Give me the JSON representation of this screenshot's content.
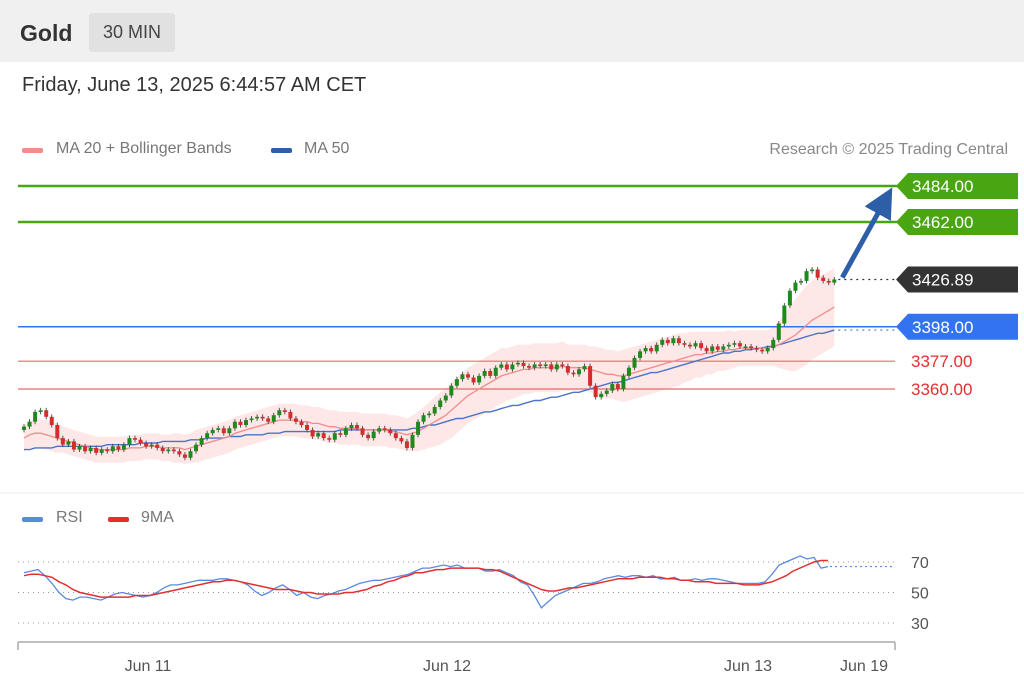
{
  "header": {
    "instrument": "Gold",
    "timeframe": "30 MIN"
  },
  "timestamp": "Friday, June 13, 2025 6:44:57 AM CET",
  "legend": {
    "ma20_label": "MA 20 + Bollinger Bands",
    "ma50_label": "MA 50"
  },
  "credit": "Research © 2025 Trading Central",
  "rsi_legend": {
    "rsi_label": "RSI",
    "ma_label": "9MA"
  },
  "colors": {
    "resistance": "#49a612",
    "support_line": "#e76b6b",
    "pivot": "#3373f2",
    "ma20": "#f08c8c",
    "ma50": "#4a74c8",
    "band": "#fde3e3",
    "bull": "#1e8a1e",
    "bear": "#d32d2d",
    "arrow": "#2d5ea8",
    "price_tag": "#333333",
    "rsi": "#5a8ae0",
    "rsi_ma": "#e23030"
  },
  "chart_data": [
    {
      "type": "candlestick",
      "title": "Gold 30 MIN",
      "ylim": [
        3300,
        3500
      ],
      "x_ticks": [
        "Jun 11",
        "Jun 12",
        "Jun 13",
        "Jun 19"
      ],
      "current_price": 3426.89,
      "levels": {
        "resistance": [
          3484.0,
          3462.0
        ],
        "pivot": 3398.0,
        "support": [
          3377.0,
          3360.0
        ]
      },
      "level_labels": [
        "3484.00",
        "3462.00",
        "3426.89",
        "3398.00",
        "3377.00",
        "3360.00"
      ],
      "target": 3480,
      "close": [
        3337,
        3340,
        3346,
        3347,
        3343,
        3338,
        3330,
        3326,
        3328,
        3323,
        3325,
        3322,
        3324,
        3321,
        3323,
        3322,
        3325,
        3323,
        3326,
        3330,
        3329,
        3327,
        3325,
        3326,
        3324,
        3322,
        3323,
        3322,
        3320,
        3318,
        3322,
        3326,
        3330,
        3333,
        3335,
        3336,
        3333,
        3336,
        3340,
        3338,
        3341,
        3342,
        3343,
        3342,
        3340,
        3344,
        3347,
        3346,
        3342,
        3340,
        3338,
        3335,
        3331,
        3333,
        3330,
        3329,
        3333,
        3332,
        3336,
        3338,
        3336,
        3332,
        3330,
        3334,
        3336,
        3335,
        3333,
        3330,
        3328,
        3324,
        3332,
        3340,
        3344,
        3345,
        3349,
        3353,
        3356,
        3362,
        3366,
        3369,
        3367,
        3364,
        3368,
        3371,
        3368,
        3373,
        3375,
        3372,
        3375,
        3376,
        3374,
        3373,
        3375,
        3374,
        3375,
        3372,
        3375,
        3374,
        3370,
        3369,
        3372,
        3374,
        3362,
        3355,
        3357,
        3359,
        3363,
        3360,
        3368,
        3373,
        3379,
        3383,
        3385,
        3383,
        3387,
        3390,
        3388,
        3391,
        3388,
        3387,
        3386,
        3388,
        3385,
        3383,
        3386,
        3384,
        3386,
        3387,
        3388,
        3386,
        3386,
        3385,
        3384,
        3383,
        3385,
        3390,
        3400,
        3411,
        3420,
        3425,
        3426,
        3432,
        3433,
        3428,
        3426,
        3425,
        3426.89
      ],
      "ma20": [
        3330,
        3332,
        3333,
        3333,
        3332,
        3331,
        3330,
        3329,
        3328,
        3327,
        3326,
        3325,
        3324,
        3323,
        3323,
        3323,
        3323,
        3323,
        3323,
        3324,
        3324,
        3324,
        3325,
        3325,
        3325,
        3324,
        3324,
        3324,
        3324,
        3323,
        3324,
        3325,
        3326,
        3327,
        3328,
        3329,
        3330,
        3331,
        3333,
        3334,
        3335,
        3336,
        3337,
        3338,
        3339,
        3340,
        3341,
        3341,
        3341,
        3341,
        3340,
        3340,
        3339,
        3339,
        3338,
        3337,
        3337,
        3336,
        3336,
        3336,
        3336,
        3335,
        3335,
        3335,
        3335,
        3335,
        3334,
        3334,
        3333,
        3332,
        3333,
        3334,
        3336,
        3338,
        3340,
        3342,
        3344,
        3347,
        3350,
        3353,
        3356,
        3358,
        3360,
        3362,
        3364,
        3366,
        3368,
        3369,
        3370,
        3371,
        3372,
        3372,
        3373,
        3373,
        3373,
        3373,
        3373,
        3374,
        3373,
        3373,
        3373,
        3373,
        3372,
        3371,
        3370,
        3369,
        3369,
        3368,
        3368,
        3369,
        3370,
        3371,
        3372,
        3373,
        3374,
        3375,
        3376,
        3377,
        3378,
        3379,
        3380,
        3381,
        3381,
        3382,
        3382,
        3383,
        3383,
        3384,
        3384,
        3385,
        3385,
        3385,
        3385,
        3385,
        3385,
        3386,
        3387,
        3389,
        3391,
        3393,
        3396,
        3399,
        3402,
        3404,
        3406,
        3408,
        3410
      ],
      "ma50": [
        3323,
        3323,
        3324,
        3324,
        3324,
        3324,
        3325,
        3325,
        3325,
        3325,
        3325,
        3325,
        3325,
        3325,
        3325,
        3326,
        3326,
        3326,
        3326,
        3326,
        3326,
        3327,
        3327,
        3327,
        3327,
        3328,
        3328,
        3328,
        3328,
        3328,
        3329,
        3329,
        3329,
        3330,
        3330,
        3330,
        3330,
        3331,
        3331,
        3331,
        3332,
        3332,
        3332,
        3332,
        3333,
        3333,
        3333,
        3334,
        3334,
        3334,
        3334,
        3334,
        3334,
        3334,
        3334,
        3334,
        3334,
        3335,
        3335,
        3335,
        3335,
        3335,
        3335,
        3335,
        3335,
        3335,
        3335,
        3335,
        3335,
        3335,
        3336,
        3336,
        3337,
        3338,
        3338,
        3339,
        3340,
        3341,
        3342,
        3342,
        3343,
        3344,
        3345,
        3346,
        3346,
        3347,
        3348,
        3349,
        3350,
        3350,
        3351,
        3352,
        3353,
        3353,
        3354,
        3355,
        3355,
        3356,
        3357,
        3358,
        3358,
        3359,
        3360,
        3361,
        3362,
        3363,
        3364,
        3364,
        3365,
        3366,
        3367,
        3368,
        3369,
        3370,
        3370,
        3371,
        3372,
        3373,
        3374,
        3375,
        3376,
        3377,
        3378,
        3379,
        3380,
        3381,
        3382,
        3382,
        3383,
        3383,
        3384,
        3384,
        3385,
        3385,
        3386,
        3386,
        3387,
        3388,
        3389,
        3390,
        3391,
        3392,
        3393,
        3394,
        3394,
        3395,
        3396
      ],
      "band_width": [
        8,
        8,
        9,
        9,
        9,
        9,
        9,
        8,
        8,
        8,
        8,
        8,
        8,
        8,
        8,
        8,
        8,
        8,
        8,
        8,
        8,
        8,
        8,
        8,
        8,
        8,
        8,
        9,
        9,
        9,
        9,
        10,
        10,
        10,
        10,
        10,
        10,
        10,
        10,
        10,
        10,
        10,
        10,
        10,
        10,
        10,
        10,
        10,
        10,
        10,
        10,
        10,
        10,
        10,
        10,
        10,
        10,
        10,
        10,
        10,
        10,
        10,
        10,
        10,
        10,
        10,
        10,
        10,
        10,
        10,
        11,
        12,
        13,
        14,
        15,
        16,
        16,
        17,
        17,
        17,
        17,
        17,
        17,
        17,
        17,
        17,
        17,
        16,
        16,
        16,
        15,
        15,
        15,
        15,
        15,
        15,
        15,
        15,
        14,
        14,
        14,
        14,
        14,
        15,
        15,
        15,
        15,
        15,
        16,
        16,
        16,
        16,
        16,
        16,
        16,
        16,
        16,
        16,
        16,
        15,
        15,
        14,
        14,
        13,
        13,
        12,
        12,
        12,
        11,
        11,
        11,
        11,
        11,
        11,
        11,
        12,
        14,
        17,
        20,
        22,
        23,
        24,
        24,
        24,
        24,
        24,
        24
      ]
    },
    {
      "type": "line",
      "title": "RSI",
      "ylim": [
        30,
        70
      ],
      "y_ticks": [
        "70",
        "50",
        "30"
      ],
      "series": [
        {
          "name": "RSI",
          "values": [
            63,
            64,
            65,
            61,
            56,
            50,
            46,
            45,
            47,
            47,
            46,
            45,
            47,
            49,
            50,
            49,
            48,
            47,
            48,
            50,
            53,
            55,
            55,
            56,
            57,
            58,
            58,
            58,
            59,
            59,
            58,
            57,
            55,
            51,
            48,
            50,
            53,
            55,
            52,
            48,
            50,
            47,
            46,
            48,
            49,
            51,
            52,
            54,
            56,
            57,
            58,
            58,
            59,
            60,
            61,
            62,
            64,
            66,
            66,
            67,
            68,
            67,
            68,
            66,
            66,
            66,
            64,
            64,
            65,
            63,
            61,
            57,
            55,
            48,
            40,
            44,
            48,
            50,
            52,
            54,
            56,
            56,
            57,
            59,
            60,
            61,
            60,
            61,
            61,
            60,
            61,
            59,
            59,
            60,
            58,
            58,
            59,
            58,
            59,
            59,
            58,
            57,
            56,
            56,
            56,
            56,
            57,
            62,
            68,
            70,
            72,
            74,
            72,
            73,
            66,
            67
          ]
        },
        {
          "name": "9MA",
          "values": [
            61,
            62,
            62,
            61,
            60,
            57,
            55,
            52,
            50,
            49,
            48,
            47,
            47,
            47,
            47,
            47,
            48,
            48,
            48,
            49,
            50,
            51,
            52,
            53,
            54,
            55,
            56,
            57,
            57,
            58,
            58,
            57,
            56,
            55,
            54,
            53,
            52,
            52,
            52,
            51,
            50,
            50,
            49,
            49,
            49,
            49,
            50,
            50,
            51,
            52,
            54,
            55,
            57,
            58,
            60,
            61,
            63,
            63,
            64,
            65,
            65,
            66,
            66,
            66,
            66,
            66,
            65,
            65,
            64,
            62,
            60,
            58,
            56,
            54,
            52,
            51,
            51,
            52,
            53,
            53,
            54,
            55,
            56,
            57,
            58,
            59,
            59,
            59,
            60,
            60,
            60,
            60,
            59,
            59,
            58,
            58,
            57,
            57,
            57,
            56,
            56,
            56,
            56,
            55,
            55,
            55,
            56,
            57,
            59,
            61,
            64,
            66,
            68,
            70,
            71,
            71
          ]
        }
      ]
    }
  ]
}
